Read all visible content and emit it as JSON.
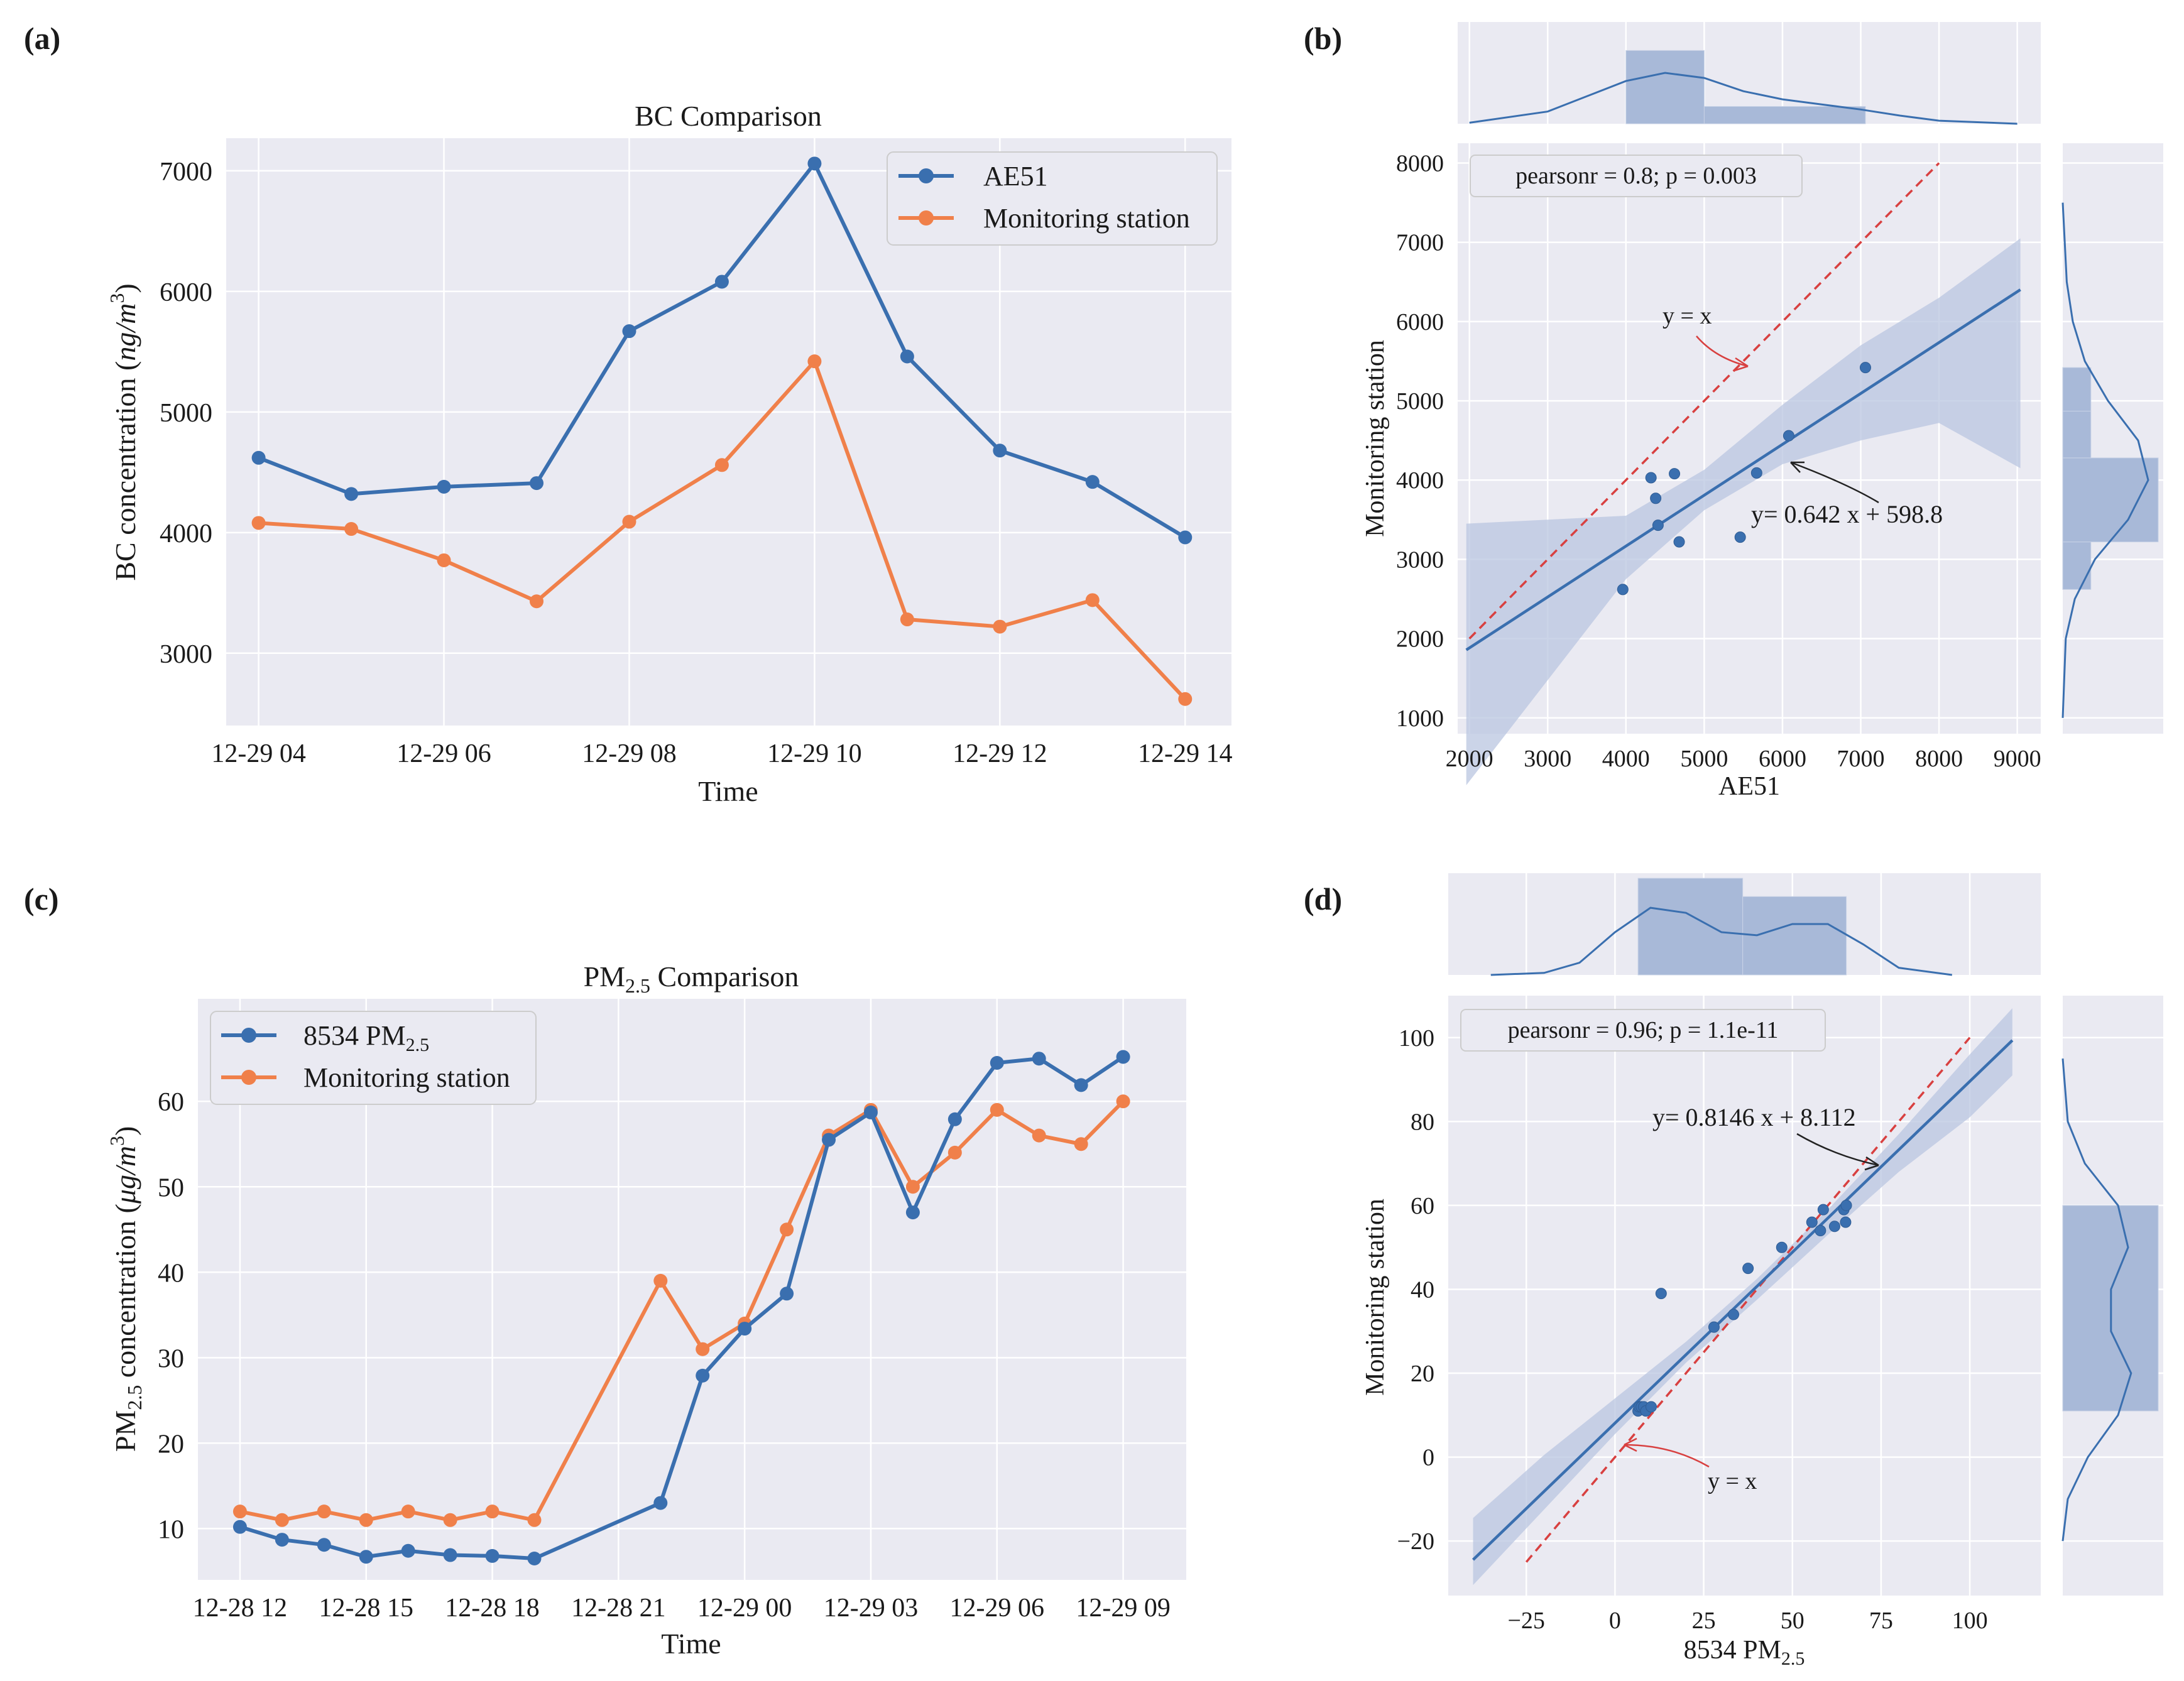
{
  "colors": {
    "panel_bg": "#eaeaf2",
    "grid": "#ffffff",
    "series_blue": "#3a6faf",
    "series_orange": "#f0804a",
    "reg_line": "#3a6faf",
    "ci_band": "#b9c6e0",
    "hist_fill": "#a8b9d8",
    "identity_line": "#d84040",
    "annotation_red": "#d84040"
  },
  "chart_data": [
    {
      "id": "a",
      "panel_label": "(a)",
      "type": "line",
      "title": "BC Comparison",
      "xlabel": "Time",
      "ylabel_text": "BC concentration (",
      "ylabel_math": "ng/m",
      "ylabel_sup": "3",
      "ylabel_close": ")",
      "x_ticklabels": [
        "12-29 04",
        "12-29 06",
        "12-29 08",
        "12-29 10",
        "12-29 12",
        "12-29 14"
      ],
      "x": [
        "12-29 04",
        "12-29 05",
        "12-29 06",
        "12-29 07",
        "12-29 08",
        "12-29 09",
        "12-29 10",
        "12-29 11",
        "12-29 12",
        "12-29 13",
        "12-29 14"
      ],
      "xlim": [
        -0.35,
        10.5
      ],
      "ylim": [
        2400,
        7270
      ],
      "yticks": [
        3000,
        4000,
        5000,
        6000,
        7000
      ],
      "grid": true,
      "legend_position": "top-right",
      "series": [
        {
          "name": "AE51",
          "values": [
            4620,
            4320,
            4380,
            4410,
            5670,
            6080,
            7060,
            5460,
            4680,
            4420,
            3960
          ]
        },
        {
          "name": "Monitoring station",
          "values": [
            4080,
            4030,
            3770,
            3430,
            4090,
            4560,
            5420,
            3280,
            3220,
            3440,
            2620
          ]
        }
      ]
    },
    {
      "id": "b",
      "panel_label": "(b)",
      "type": "scatter",
      "xlabel": "AE51",
      "ylabel": "Monitoring station",
      "xlim": [
        1850,
        9300
      ],
      "ylim": [
        800,
        8250
      ],
      "xticks": [
        2000,
        3000,
        4000,
        5000,
        6000,
        7000,
        8000,
        9000
      ],
      "yticks": [
        1000,
        2000,
        3000,
        4000,
        5000,
        6000,
        7000,
        8000
      ],
      "grid": true,
      "stats_text": "pearsonr = 0.8; p = 0.003",
      "points": [
        {
          "x": 4620,
          "y": 4080
        },
        {
          "x": 4320,
          "y": 4030
        },
        {
          "x": 4380,
          "y": 3770
        },
        {
          "x": 4410,
          "y": 3430
        },
        {
          "x": 5670,
          "y": 4090
        },
        {
          "x": 6080,
          "y": 4560
        },
        {
          "x": 7060,
          "y": 5420
        },
        {
          "x": 5460,
          "y": 3280
        },
        {
          "x": 4680,
          "y": 3220
        },
        {
          "x": 3960,
          "y": 2620
        }
      ],
      "regression": {
        "label": "y= 0.642 x + 598.8",
        "slope": 0.642,
        "intercept": 598.8,
        "x_range": [
          1960,
          9040
        ]
      },
      "ci_band": {
        "x": [
          1960,
          4000,
          5000,
          6000,
          7000,
          8000,
          9040
        ],
        "lower": [
          150,
          2750,
          3620,
          4200,
          4500,
          4720,
          4150
        ],
        "upper": [
          3450,
          3550,
          4130,
          4950,
          5700,
          6300,
          7050
        ]
      },
      "identity_line": {
        "label": "y = x",
        "from": [
          2000,
          2000
        ],
        "to": [
          8000,
          8000
        ]
      },
      "top_histogram": {
        "bins": [
          [
            4000,
            5000,
            0.72
          ],
          [
            5000,
            7060,
            0.17
          ]
        ],
        "kde_x": [
          2000,
          3000,
          3500,
          4000,
          4500,
          5000,
          5500,
          6000,
          6500,
          7000,
          7500,
          8000,
          9000
        ],
        "kde_y": [
          0.01,
          0.12,
          0.27,
          0.42,
          0.5,
          0.45,
          0.32,
          0.24,
          0.19,
          0.14,
          0.08,
          0.03,
          0.0
        ]
      },
      "right_histogram": {
        "bins": [
          [
            2620,
            3220,
            0.28
          ],
          [
            3220,
            4280,
            0.95
          ],
          [
            4280,
            4870,
            0.28
          ],
          [
            4870,
            5420,
            0.28
          ]
        ],
        "kde_y": [
          1000,
          2000,
          2500,
          3000,
          3500,
          4000,
          4500,
          5000,
          5500,
          6000,
          6500,
          7000,
          7500
        ],
        "kde_x": [
          0.0,
          0.03,
          0.12,
          0.32,
          0.65,
          0.85,
          0.75,
          0.45,
          0.22,
          0.1,
          0.04,
          0.02,
          0.0
        ]
      }
    },
    {
      "id": "c",
      "panel_label": "(c)",
      "type": "line",
      "title_text": "PM",
      "title_sub": "2.5",
      "title_rest": " Comparison",
      "xlabel": "Time",
      "ylabel_text": "PM",
      "ylabel_sub": "2.5",
      "ylabel_rest": " concentration (",
      "ylabel_math": "μg/m",
      "ylabel_sup": "3",
      "ylabel_close": ")",
      "x_ticklabels": [
        "12-28 12",
        "12-28 15",
        "12-28 18",
        "12-28 21",
        "12-29 00",
        "12-29 03",
        "12-29 06",
        "12-29 09"
      ],
      "xlim": [
        -1,
        22.5
      ],
      "ylim": [
        4,
        72
      ],
      "yticks": [
        10,
        20,
        30,
        40,
        50,
        60
      ],
      "grid": true,
      "legend_position": "top-left",
      "series": [
        {
          "name": "8534 PM",
          "name_sub": "2.5",
          "x": [
            0,
            1,
            2,
            3,
            4,
            5,
            6,
            7,
            10,
            11,
            12,
            13,
            14,
            15,
            16,
            17,
            18,
            19,
            20,
            21,
            22
          ],
          "values": [
            10.2,
            8.7,
            8.1,
            6.7,
            7.4,
            6.9,
            6.8,
            6.5,
            13.0,
            27.9,
            33.4,
            37.5,
            55.5,
            58.7,
            47.0,
            57.9,
            64.5,
            65.0,
            61.9,
            65.2,
            null
          ]
        },
        {
          "name": "Monitoring station",
          "x": [
            0,
            1,
            2,
            3,
            4,
            5,
            6,
            7,
            10,
            11,
            12,
            13,
            14,
            15,
            16,
            17,
            18,
            19,
            20,
            21,
            22
          ],
          "values": [
            12,
            11,
            12,
            11,
            12,
            11,
            12,
            11,
            39,
            31,
            34,
            45,
            56,
            59,
            50,
            54,
            59,
            56,
            55,
            60,
            null
          ]
        }
      ]
    },
    {
      "id": "d",
      "panel_label": "(d)",
      "type": "scatter",
      "xlabel_text": "8534 PM",
      "xlabel_sub": "2.5",
      "ylabel": "Monitoring station",
      "xlim": [
        -47,
        120
      ],
      "ylim": [
        -33,
        110
      ],
      "xticks": [
        -25,
        0,
        25,
        50,
        75,
        100
      ],
      "xticklabels": [
        "−25",
        "0",
        "25",
        "50",
        "75",
        "100"
      ],
      "yticks": [
        -20,
        0,
        20,
        40,
        60,
        80,
        100
      ],
      "yticklabels": [
        "−20",
        "0",
        "20",
        "40",
        "60",
        "80",
        "100"
      ],
      "grid": true,
      "stats_text": "pearsonr = 0.96; p = 1.1e-11",
      "points": [
        {
          "x": 6.5,
          "y": 11
        },
        {
          "x": 6.8,
          "y": 12
        },
        {
          "x": 7.4,
          "y": 12
        },
        {
          "x": 8.1,
          "y": 12
        },
        {
          "x": 8.7,
          "y": 11
        },
        {
          "x": 10.2,
          "y": 12
        },
        {
          "x": 13.0,
          "y": 39
        },
        {
          "x": 27.9,
          "y": 31
        },
        {
          "x": 33.4,
          "y": 34
        },
        {
          "x": 37.5,
          "y": 45
        },
        {
          "x": 47.0,
          "y": 50
        },
        {
          "x": 55.5,
          "y": 56
        },
        {
          "x": 57.9,
          "y": 54
        },
        {
          "x": 58.7,
          "y": 59
        },
        {
          "x": 61.9,
          "y": 55
        },
        {
          "x": 64.5,
          "y": 59
        },
        {
          "x": 65.0,
          "y": 56
        },
        {
          "x": 65.2,
          "y": 60
        }
      ],
      "regression": {
        "label": "y= 0.8146 x + 8.112",
        "slope": 0.8146,
        "intercept": 8.112,
        "x_range": [
          -40,
          112
        ]
      },
      "ci_band": {
        "x": [
          -40,
          -20,
          0,
          20,
          40,
          60,
          80,
          100,
          112
        ],
        "lower": [
          -30.5,
          -12.5,
          5.5,
          22.5,
          37.5,
          53,
          68,
          81,
          91
        ],
        "upper": [
          -14.5,
          0.5,
          14.0,
          27.5,
          42.5,
          59,
          77,
          96,
          107
        ]
      },
      "identity_line": {
        "label": "y = x",
        "from": [
          -25,
          -25
        ],
        "to": [
          100,
          100
        ]
      },
      "top_histogram": {
        "bins": [
          [
            6.5,
            36,
            0.95
          ],
          [
            36,
            65.2,
            0.77
          ]
        ],
        "kde_x": [
          -35,
          -20,
          -10,
          0,
          10,
          20,
          30,
          40,
          50,
          60,
          70,
          80,
          95
        ],
        "kde_y": [
          0.0,
          0.02,
          0.12,
          0.42,
          0.66,
          0.61,
          0.42,
          0.39,
          0.5,
          0.5,
          0.3,
          0.07,
          0.0
        ]
      },
      "right_histogram": {
        "bins": [
          [
            11,
            60,
            0.95
          ]
        ],
        "kde_y": [
          -20,
          -10,
          0,
          10,
          20,
          30,
          40,
          50,
          60,
          70,
          80,
          95
        ],
        "kde_x": [
          0.0,
          0.05,
          0.25,
          0.55,
          0.68,
          0.48,
          0.48,
          0.65,
          0.55,
          0.22,
          0.05,
          0.0
        ]
      }
    }
  ]
}
